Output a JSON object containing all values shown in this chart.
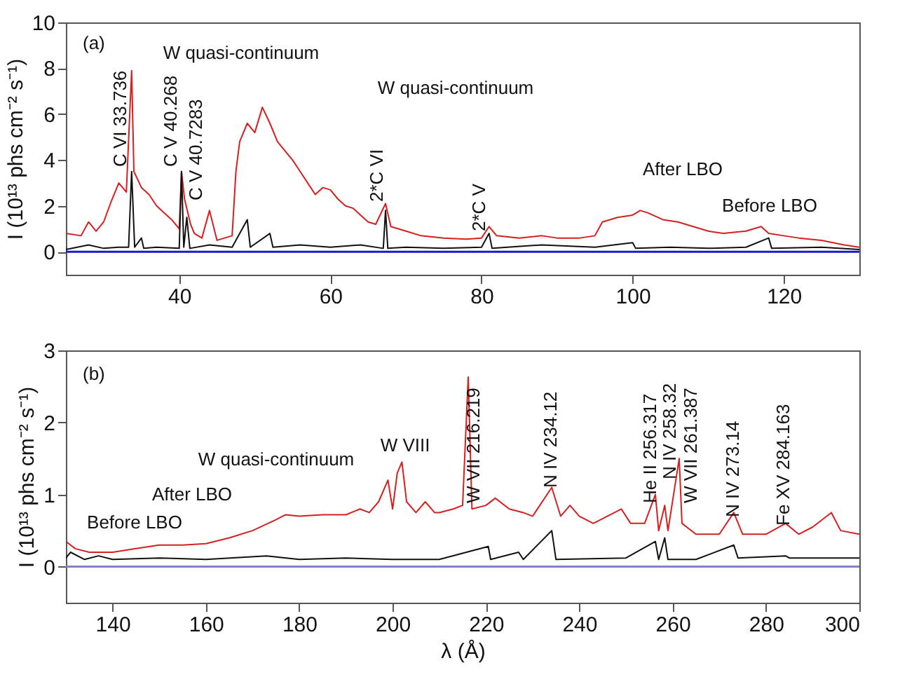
{
  "chart_data": [
    {
      "type": "line",
      "ylabel": "I (10¹³ phs cm⁻² s⁻¹)",
      "xlim": [
        25,
        130
      ],
      "xticks": [
        40,
        60,
        80,
        100,
        120
      ],
      "ylim": [
        -1,
        10
      ],
      "yticks": [
        0,
        2,
        4,
        6,
        8,
        10
      ],
      "series": [
        {
          "color": "#d42020",
          "x": [
            25,
            27,
            28,
            29,
            30,
            31,
            32,
            33,
            33.7,
            34,
            35,
            36,
            37,
            38,
            39,
            40,
            40.3,
            40.7,
            41.5,
            42,
            43,
            44,
            45,
            46,
            47,
            47.5,
            48,
            49,
            50,
            51,
            52,
            53,
            54,
            55,
            56,
            57,
            58,
            59,
            60,
            61,
            62,
            63,
            64,
            65,
            66,
            67.3,
            68,
            70,
            72,
            75,
            78,
            80,
            81,
            82,
            85,
            88,
            90,
            93,
            95,
            96,
            98,
            100,
            101,
            102,
            104,
            106,
            108,
            110,
            112,
            115,
            117,
            118,
            120,
            122,
            125,
            128,
            130
          ],
          "values": [
            0.8,
            0.7,
            1.3,
            0.9,
            1.3,
            2.2,
            3.0,
            2.6,
            7.9,
            3.5,
            2.8,
            2.5,
            2.0,
            1.7,
            1.4,
            1.0,
            3.5,
            2.3,
            1.2,
            0.8,
            0.6,
            1.8,
            0.5,
            0.6,
            0.7,
            3.5,
            4.8,
            5.6,
            5.2,
            6.3,
            5.6,
            4.8,
            4.4,
            4.0,
            3.5,
            3.0,
            2.5,
            2.8,
            2.7,
            2.3,
            2.0,
            1.9,
            1.6,
            1.3,
            1.2,
            2.1,
            1.1,
            0.9,
            0.7,
            0.6,
            0.55,
            0.6,
            1.1,
            0.7,
            0.6,
            0.7,
            0.6,
            0.6,
            0.7,
            1.3,
            1.5,
            1.6,
            1.8,
            1.7,
            1.4,
            1.3,
            1.1,
            0.9,
            0.8,
            0.9,
            1.1,
            0.8,
            0.7,
            0.6,
            0.5,
            0.3,
            0.2
          ]
        },
        {
          "color": "#111111",
          "x": [
            25,
            28,
            30,
            32,
            33.3,
            33.7,
            34.1,
            35,
            35.3,
            37,
            40,
            40.3,
            40.6,
            41,
            41.4,
            44,
            47,
            49,
            49.4,
            52,
            52.4,
            56,
            60,
            64,
            67,
            67.3,
            67.6,
            70,
            75,
            80,
            81,
            81.4,
            88,
            95,
            100,
            100.4,
            105,
            110,
            115,
            118,
            118.4,
            125,
            130
          ],
          "values": [
            0.1,
            0.3,
            0.15,
            0.2,
            0.2,
            3.5,
            0.2,
            0.6,
            0.15,
            0.2,
            0.15,
            3.5,
            0.2,
            1.5,
            0.15,
            0.3,
            0.2,
            1.4,
            0.2,
            0.8,
            0.2,
            0.3,
            0.2,
            0.3,
            0.15,
            1.8,
            0.15,
            0.2,
            0.15,
            0.2,
            0.8,
            0.15,
            0.3,
            0.2,
            0.4,
            0.15,
            0.2,
            0.15,
            0.2,
            0.6,
            0.15,
            0.2,
            0.1
          ]
        }
      ],
      "ref_lines": [
        {
          "axis": "y",
          "value": 0,
          "color": "#1a1acc"
        }
      ],
      "annotations": [
        "(a)",
        "W quasi-continuum",
        "W quasi-continuum",
        "After LBO",
        "Before LBO",
        "C VI 33.736",
        "C V  40.268",
        "C V 40.7283",
        "2*C VI",
        "2*C V"
      ]
    },
    {
      "type": "line",
      "xlabel": "λ (Å)",
      "ylabel": "I (10¹³ phs cm⁻² s⁻¹)",
      "xlim": [
        130,
        300
      ],
      "xticks": [
        140,
        160,
        180,
        200,
        220,
        240,
        260,
        280,
        300
      ],
      "ylim": [
        -0.5,
        3
      ],
      "yticks": [
        0,
        1,
        2,
        3
      ],
      "series": [
        {
          "color": "#d42020",
          "x": [
            130,
            132,
            135,
            140,
            145,
            150,
            155,
            160,
            165,
            170,
            175,
            177,
            180,
            185,
            190,
            193,
            195,
            197,
            199,
            200,
            201,
            202,
            203,
            205,
            207,
            209,
            210,
            213,
            215,
            216.2,
            217,
            220,
            222,
            225,
            228,
            230,
            234.1,
            236,
            238,
            240,
            243,
            246,
            249,
            251,
            254,
            256.3,
            257,
            258.3,
            259,
            261.4,
            262,
            265,
            270,
            273.1,
            275,
            280,
            284.2,
            287,
            290,
            294,
            296,
            300
          ],
          "values": [
            0.35,
            0.25,
            0.2,
            0.2,
            0.25,
            0.3,
            0.3,
            0.32,
            0.4,
            0.5,
            0.65,
            0.72,
            0.7,
            0.72,
            0.72,
            0.8,
            0.75,
            0.9,
            1.2,
            0.8,
            1.3,
            1.45,
            0.9,
            0.75,
            0.9,
            0.75,
            0.75,
            0.8,
            0.85,
            2.63,
            0.8,
            0.85,
            0.95,
            0.8,
            0.75,
            0.7,
            1.1,
            0.7,
            0.85,
            0.7,
            0.6,
            0.7,
            0.8,
            0.6,
            0.6,
            1.0,
            0.5,
            0.85,
            0.5,
            1.5,
            0.6,
            0.45,
            0.45,
            0.75,
            0.45,
            0.45,
            0.6,
            0.45,
            0.55,
            0.75,
            0.5,
            0.45
          ]
        },
        {
          "color": "#111111",
          "x": [
            130,
            131,
            134,
            137,
            140,
            150,
            160,
            173,
            180,
            190,
            200,
            210,
            220.5,
            221,
            227,
            228,
            234.1,
            235,
            250,
            256.3,
            257,
            258.3,
            259,
            265,
            273.1,
            274,
            284.2,
            285,
            300
          ],
          "values": [
            0.12,
            0.2,
            0.1,
            0.15,
            0.1,
            0.12,
            0.1,
            0.15,
            0.1,
            0.12,
            0.1,
            0.1,
            0.28,
            0.1,
            0.2,
            0.1,
            0.5,
            0.1,
            0.12,
            0.35,
            0.1,
            0.4,
            0.1,
            0.1,
            0.3,
            0.12,
            0.15,
            0.12,
            0.12
          ]
        }
      ],
      "ref_lines": [
        {
          "axis": "y",
          "value": 0,
          "color": "#8080d0"
        }
      ],
      "annotations": [
        "(b)",
        "W quasi-continuum",
        "W VIII",
        "After LBO",
        "Before LBO",
        "W VII 216.219",
        "N IV 234.12",
        "He II 256.317",
        "N IV 258.32",
        "W VII 261.387",
        "N IV 273.14",
        "Fe XV 284.163"
      ]
    }
  ]
}
